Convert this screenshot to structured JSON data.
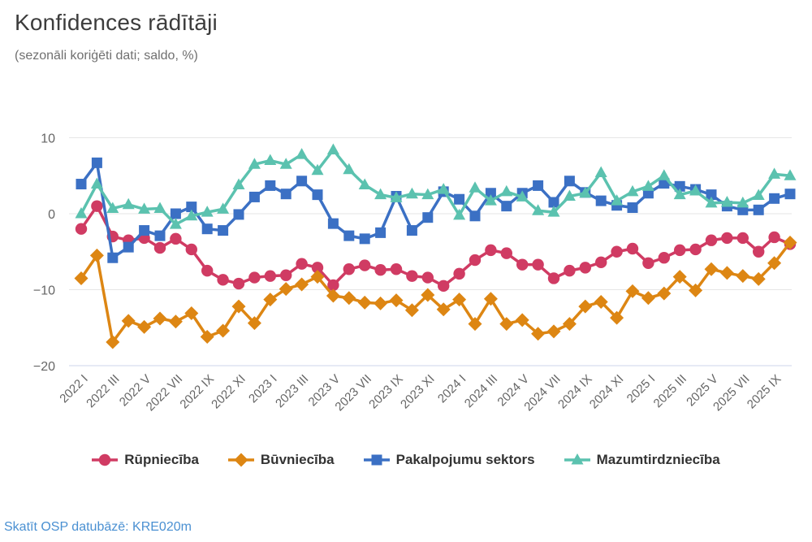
{
  "footer": {
    "link_text": "Skatīt OSP datubāzē: KRE020m"
  },
  "colors": {
    "grid": "#e6e6e6",
    "axis_line": "#ccd6eb",
    "tick_text": "#666666",
    "title_text": "#3c3c3c",
    "subtitle_text": "#707070",
    "legend_text": "#333333",
    "link": "#4a90d2"
  },
  "chart_data": {
    "type": "line",
    "title": "Konfidences rādītāji",
    "subtitle": "(sezonāli koriģēti dati; saldo, %)",
    "ylabel": "",
    "xlabel": "",
    "ylim": [
      -20,
      10
    ],
    "yticks": [
      10,
      0,
      -10,
      -20
    ],
    "grid": "horizontal",
    "legend_position": "bottom",
    "x": [
      "2022 I",
      "2022 II",
      "2022 III",
      "2022 IV",
      "2022 V",
      "2022 VI",
      "2022 VII",
      "2022 VIII",
      "2022 IX",
      "2022 X",
      "2022 XI",
      "2022 XII",
      "2023 I",
      "2023 II",
      "2023 III",
      "2023 IV",
      "2023 V",
      "2023 VI",
      "2023 VII",
      "2023 VIII",
      "2023 IX",
      "2023 X",
      "2023 XI",
      "2023 XII",
      "2024 I",
      "2024 II",
      "2024 III",
      "2024 IV",
      "2024 V",
      "2024 VI",
      "2024 VII",
      "2024 VIII",
      "2024 IX",
      "2024 X",
      "2024 XI",
      "2024 XII",
      "2025 I",
      "2025 II",
      "2025 III",
      "2025 IV",
      "2025 V",
      "2025 VI",
      "2025 VII",
      "2025 VIII",
      "2025 IX",
      "2025 X"
    ],
    "xtick_every": 2,
    "series": [
      {
        "name": "Rūpniecība",
        "color": "#d03b63",
        "symbol": "circle",
        "values": [
          -2.0,
          1.0,
          -3.0,
          -3.5,
          -3.2,
          -4.5,
          -3.3,
          -4.7,
          -7.5,
          -8.7,
          -9.2,
          -8.4,
          -8.2,
          -8.1,
          -6.6,
          -7.1,
          -9.4,
          -7.3,
          -6.8,
          -7.4,
          -7.3,
          -8.2,
          -8.4,
          -9.5,
          -7.9,
          -6.1,
          -4.8,
          -5.2,
          -6.7,
          -6.7,
          -8.5,
          -7.5,
          -7.1,
          -6.4,
          -5.0,
          -4.6,
          -6.5,
          -5.8,
          -4.8,
          -4.7,
          -3.5,
          -3.2,
          -3.2,
          -5.0,
          -3.1,
          -4.0
        ]
      },
      {
        "name": "Būvniecība",
        "color": "#dd8613",
        "symbol": "diamond",
        "values": [
          -8.5,
          -5.5,
          -16.9,
          -14.1,
          -14.9,
          -13.8,
          -14.2,
          -13.1,
          -16.2,
          -15.4,
          -12.2,
          -14.4,
          -11.3,
          -9.9,
          -9.3,
          -8.3,
          -10.8,
          -11.1,
          -11.7,
          -11.8,
          -11.4,
          -12.7,
          -10.7,
          -12.6,
          -11.3,
          -14.5,
          -11.2,
          -14.5,
          -14.0,
          -15.8,
          -15.5,
          -14.5,
          -12.2,
          -11.6,
          -13.7,
          -10.2,
          -11.1,
          -10.5,
          -8.3,
          -10.1,
          -7.3,
          -7.8,
          -8.2,
          -8.6,
          -6.5,
          -3.8
        ]
      },
      {
        "name": "Pakalpojumu sektors",
        "color": "#3b70c4",
        "symbol": "square",
        "values": [
          3.9,
          6.7,
          -5.8,
          -4.4,
          -2.2,
          -2.9,
          0.0,
          0.9,
          -2.0,
          -2.2,
          -0.1,
          2.2,
          3.7,
          2.6,
          4.3,
          2.5,
          -1.3,
          -2.9,
          -3.3,
          -2.5,
          2.3,
          -2.2,
          -0.5,
          2.9,
          1.9,
          -0.3,
          2.7,
          1.0,
          2.7,
          3.7,
          1.5,
          4.3,
          2.8,
          1.7,
          1.1,
          0.8,
          2.7,
          4.0,
          3.6,
          3.2,
          2.5,
          1.0,
          0.5,
          0.5,
          2.0,
          2.6
        ]
      },
      {
        "name": "Mazumtirdzniecība",
        "color": "#5bc2af",
        "symbol": "triangle",
        "values": [
          0.0,
          3.9,
          0.7,
          1.2,
          0.6,
          0.7,
          -1.4,
          -0.3,
          0.2,
          0.6,
          3.8,
          6.5,
          7.0,
          6.5,
          7.8,
          5.7,
          8.4,
          5.8,
          3.8,
          2.5,
          2.1,
          2.6,
          2.5,
          3.2,
          -0.2,
          3.4,
          1.7,
          2.9,
          2.2,
          0.4,
          0.2,
          2.3,
          2.7,
          5.4,
          1.7,
          2.9,
          3.6,
          5.0,
          2.5,
          3.0,
          1.4,
          1.5,
          1.4,
          2.4,
          5.2,
          5.0
        ]
      }
    ]
  }
}
